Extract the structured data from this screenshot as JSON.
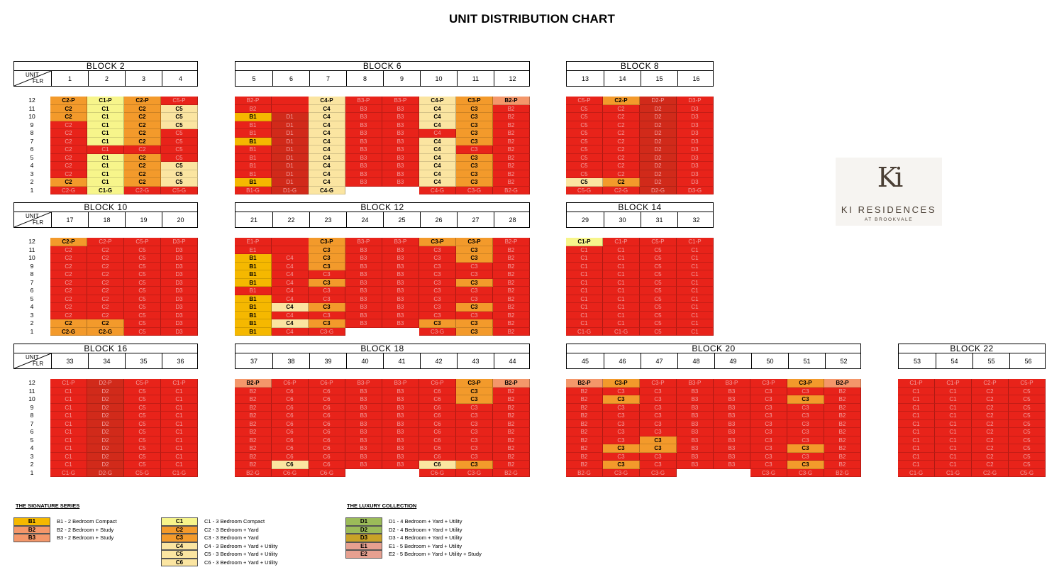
{
  "title": "UNIT DISTRIBUTION CHART",
  "colors": {
    "sold": "#e8231a",
    "B1": "#f5b800",
    "B2": "#f4976a",
    "B3": "#f4976a",
    "C1": "#f7f58b",
    "C2": "#f39a2b",
    "C3": "#f39a2b",
    "C4": "#fbe5a1",
    "C5": "#fbe5a1",
    "C6": "#fbe5a1",
    "D1": "#9bbb59",
    "D2": "#9bbb59",
    "D3": "#c9a227",
    "E1": "#e6a090",
    "E2": "#e6a090",
    "D1sold": "#d12a1a",
    "D2sold": "#d12a1a"
  },
  "corner": {
    "unit": "UNIT",
    "flr": "FLR"
  },
  "floors": [
    "12",
    "11",
    "10",
    "9",
    "8",
    "7",
    "6",
    "5",
    "4",
    "3",
    "2",
    "1"
  ],
  "blocks": [
    {
      "name": "BLOCK  2",
      "units": [
        "1",
        "2",
        "3",
        "4"
      ],
      "cols": [
        [
          "C2-P*",
          "C2*",
          "C2*",
          "C2",
          "C2",
          "C2",
          "C2",
          "C2",
          "C2",
          "C2",
          "C2*",
          "C2-G"
        ],
        [
          "C1-P*",
          "C1*",
          "C1*",
          "C1*",
          "C1*",
          "C1*",
          "C1",
          "C1*",
          "C1*",
          "C1*",
          "C1*",
          "C1-G*"
        ],
        [
          "C2-P*",
          "C2*",
          "C2*",
          "C2*",
          "C2*",
          "C2*",
          "C2",
          "C2*",
          "C2*",
          "C2*",
          "C2*",
          "C2-G"
        ],
        [
          "C5-P",
          "C5*",
          "C5*",
          "C5*",
          "C5",
          "C5",
          "C5",
          "C5",
          "C5*",
          "C5*",
          "C5*",
          "C5-G"
        ]
      ]
    },
    {
      "name": "BLOCK  6",
      "units": [
        "5",
        "6",
        "7",
        "8",
        "9",
        "10",
        "11",
        "12"
      ],
      "cols": [
        [
          "B2-P",
          "B2",
          "B1*",
          "B1",
          "B1",
          "B1*",
          "B1",
          "B1",
          "B1",
          "B1",
          "B1*",
          "B1-G"
        ],
        [
          "-",
          "-",
          "D1",
          "D1",
          "D1",
          "D1",
          "D1",
          "D1",
          "D1",
          "D1",
          "D1",
          "D1-G"
        ],
        [
          "C4-P*",
          "C4*",
          "C4*",
          "C4*",
          "C4*",
          "C4*",
          "C4*",
          "C4*",
          "C4*",
          "C4*",
          "C4*",
          "C4-G*"
        ],
        [
          "B3-P",
          "B3",
          "B3",
          "B3",
          "B3",
          "B3",
          "B3",
          "B3",
          "B3",
          "B3",
          "B3",
          "~"
        ],
        [
          "B3-P",
          "B3",
          "B3",
          "B3",
          "B3",
          "B3",
          "B3",
          "B3",
          "B3",
          "B3",
          "B3",
          "~"
        ],
        [
          "C4-P*",
          "C4*",
          "C4*",
          "C4*",
          "C4",
          "C4*",
          "C4*",
          "C4*",
          "C4*",
          "C4*",
          "C4*",
          "C4-G"
        ],
        [
          "C3-P*",
          "C3*",
          "C3*",
          "C3*",
          "C3*",
          "C3*",
          "C3",
          "C3*",
          "C3*",
          "C3*",
          "C3*",
          "C3-G"
        ],
        [
          "B2-P*",
          "B2",
          "B2",
          "B2",
          "B2",
          "B2",
          "B2",
          "B2",
          "B2",
          "B2",
          "B2",
          "B2-G"
        ]
      ]
    },
    {
      "name": "BLOCK  8",
      "units": [
        "13",
        "14",
        "15",
        "16"
      ],
      "cols": [
        [
          "C5-P",
          "C5",
          "C5",
          "C5",
          "C5",
          "C5",
          "C5",
          "C5",
          "C5",
          "C5",
          "C5*",
          "C5-G"
        ],
        [
          "C2-P*",
          "C2",
          "C2",
          "C2",
          "C2",
          "C2",
          "C2",
          "C2",
          "C2",
          "C2",
          "C2*",
          "C2-G"
        ],
        [
          "D2-P",
          "D2",
          "D2",
          "D2",
          "D2",
          "D2",
          "D2",
          "D2",
          "D2",
          "D2",
          "D2",
          "D2-G"
        ],
        [
          "D3-P",
          "D3",
          "D3",
          "D3",
          "D3",
          "D3",
          "D3",
          "D3",
          "D3",
          "D3",
          "D3",
          "D3-G"
        ]
      ]
    },
    {
      "name": "BLOCK  10",
      "units": [
        "17",
        "18",
        "19",
        "20"
      ],
      "cols": [
        [
          "C2-P*",
          "C2",
          "C2",
          "C2",
          "C2",
          "C2",
          "C2",
          "C2",
          "C2",
          "C2",
          "C2*",
          "C2-G*"
        ],
        [
          "C2-P",
          "C2",
          "C2",
          "C2",
          "C2",
          "C2",
          "C2",
          "C2",
          "C2",
          "C2",
          "C2*",
          "C2-G*"
        ],
        [
          "C5-P",
          "C5",
          "C5",
          "C5",
          "C5",
          "C5",
          "C5",
          "C5",
          "C5",
          "C5",
          "C5",
          "C5"
        ],
        [
          "D3-P",
          "D3",
          "D3",
          "D3",
          "D3",
          "D3",
          "D3",
          "D3",
          "D3",
          "D3",
          "D3",
          "D3"
        ]
      ]
    },
    {
      "name": "BLOCK  12",
      "units": [
        "21",
        "22",
        "23",
        "24",
        "25",
        "26",
        "27",
        "28"
      ],
      "cols": [
        [
          "E1-P",
          "E1",
          "B1*",
          "B1*",
          "B1*",
          "B1*",
          "B1",
          "B1*",
          "B1*",
          "B1*",
          "B1*",
          "B1*"
        ],
        [
          "-",
          "-",
          "C4",
          "C4",
          "C4",
          "C4",
          "C4",
          "C4",
          "C4*",
          "C4",
          "C4*",
          "C4"
        ],
        [
          "C3-P*",
          "C3*",
          "C3*",
          "C3*",
          "C3",
          "C3*",
          "C3",
          "C3",
          "C3*",
          "C3",
          "C3*",
          "C3-G"
        ],
        [
          "B3-P",
          "B3",
          "B3",
          "B3",
          "B3",
          "B3",
          "B3",
          "B3",
          "B3",
          "B3",
          "B3",
          "~"
        ],
        [
          "B3-P",
          "B3",
          "B3",
          "B3",
          "B3",
          "B3",
          "B3",
          "B3",
          "B3",
          "B3",
          "B3",
          "~"
        ],
        [
          "C3-P*",
          "C3",
          "C3",
          "C3",
          "C3",
          "C3",
          "C3",
          "C3",
          "C3",
          "C3",
          "C3*",
          "C3-G"
        ],
        [
          "C3-P*",
          "C3*",
          "C3*",
          "C3",
          "C3",
          "C3*",
          "C3",
          "C3",
          "C3*",
          "C3",
          "C3*",
          "C3*"
        ],
        [
          "B2-P",
          "B2",
          "B2",
          "B2",
          "B2",
          "B2",
          "B2",
          "B2",
          "B2",
          "B2",
          "B2",
          "B2"
        ]
      ]
    },
    {
      "name": "BLOCK  14",
      "units": [
        "29",
        "30",
        "31",
        "32"
      ],
      "cols": [
        [
          "C1-P*",
          "C1",
          "C1",
          "C1",
          "C1",
          "C1",
          "C1",
          "C1",
          "C1",
          "C1",
          "C1",
          "C1-G"
        ],
        [
          "C1-P",
          "C1",
          "C1",
          "C1",
          "C1",
          "C1",
          "C1",
          "C1",
          "C1",
          "C1",
          "C1",
          "C1-G"
        ],
        [
          "C5-P",
          "C5",
          "C5",
          "C5",
          "C5",
          "C5",
          "C5",
          "C5",
          "C5",
          "C5",
          "C5",
          "C5"
        ],
        [
          "C1-P",
          "C1",
          "C1",
          "C1",
          "C1",
          "C1",
          "C1",
          "C1",
          "C1",
          "C1",
          "C1",
          "C1"
        ]
      ]
    },
    {
      "name": "BLOCK  16",
      "units": [
        "33",
        "34",
        "35",
        "36"
      ],
      "cols": [
        [
          "C1-P",
          "C1",
          "C1",
          "C1",
          "C1",
          "C1",
          "C1",
          "C1",
          "C1",
          "C1",
          "C1",
          "C1-G"
        ],
        [
          "D2-P",
          "D2",
          "D2",
          "D2",
          "D2",
          "D2",
          "D2",
          "D2",
          "D2",
          "D2",
          "D2",
          "D2-G"
        ],
        [
          "C5-P",
          "C5",
          "C5",
          "C5",
          "C5",
          "C5",
          "C5",
          "C5",
          "C5",
          "C5",
          "C5",
          "C5-G"
        ],
        [
          "C1-P",
          "C1",
          "C1",
          "C1",
          "C1",
          "C1",
          "C1",
          "C1",
          "C1",
          "C1",
          "C1",
          "C1-G"
        ]
      ]
    },
    {
      "name": "BLOCK  18",
      "units": [
        "37",
        "38",
        "39",
        "40",
        "41",
        "42",
        "43",
        "44"
      ],
      "cols": [
        [
          "B2-P*",
          "B2",
          "B2",
          "B2",
          "B2",
          "B2",
          "B2",
          "B2",
          "B2",
          "B2",
          "B2",
          "B2-G"
        ],
        [
          "C6-P",
          "C6",
          "C6",
          "C6",
          "C6",
          "C6",
          "C6",
          "C6",
          "C6",
          "C6",
          "C6*",
          "C6-G"
        ],
        [
          "C6-P",
          "C6",
          "C6",
          "C6",
          "C6",
          "C6",
          "C6",
          "C6",
          "C6",
          "C6",
          "C6",
          "C6-G"
        ],
        [
          "B3-P",
          "B3",
          "B3",
          "B3",
          "B3",
          "B3",
          "B3",
          "B3",
          "B3",
          "B3",
          "B3",
          "~"
        ],
        [
          "B3-P",
          "B3",
          "B3",
          "B3",
          "B3",
          "B3",
          "B3",
          "B3",
          "B3",
          "B3",
          "B3",
          "~"
        ],
        [
          "C6-P",
          "C6",
          "C6",
          "C6",
          "C6",
          "C6",
          "C6",
          "C6",
          "C6",
          "C6",
          "C6*",
          "C6-G"
        ],
        [
          "C3-P*",
          "C3*",
          "C3*",
          "C3",
          "C3",
          "C3",
          "C3",
          "C3",
          "C3",
          "C3",
          "C3*",
          "C3-G"
        ],
        [
          "B2-P*",
          "B2",
          "B2",
          "B2",
          "B2",
          "B2",
          "B2",
          "B2",
          "B2",
          "B2",
          "B2",
          "B2-G"
        ]
      ]
    },
    {
      "name": "BLOCK  20",
      "units": [
        "45",
        "46",
        "47",
        "48",
        "49",
        "50",
        "51",
        "52"
      ],
      "cols": [
        [
          "B2-P*",
          "B2",
          "B2",
          "B2",
          "B2",
          "B2",
          "B2",
          "B2",
          "B2",
          "B2",
          "B2",
          "B2-G"
        ],
        [
          "C3-P*",
          "C3",
          "C3*",
          "C3",
          "C3",
          "C3",
          "C3",
          "C3",
          "C3*",
          "C3",
          "C3*",
          "C3-G"
        ],
        [
          "C3-P",
          "C3",
          "C3",
          "C3",
          "C3",
          "C3",
          "C3",
          "C3*",
          "C3*",
          "C3",
          "C3",
          "C3-G"
        ],
        [
          "B3-P",
          "B3",
          "B3",
          "B3",
          "B3",
          "B3",
          "B3",
          "B3",
          "B3",
          "B3",
          "B3",
          "~"
        ],
        [
          "B3-P",
          "B3",
          "B3",
          "B3",
          "B3",
          "B3",
          "B3",
          "B3",
          "B3",
          "B3",
          "B3",
          "~"
        ],
        [
          "C3-P",
          "C3",
          "C3",
          "C3",
          "C3",
          "C3",
          "C3",
          "C3",
          "C3",
          "C3",
          "C3",
          "C3-G"
        ],
        [
          "C3-P*",
          "C3",
          "C3*",
          "C3",
          "C3",
          "C3",
          "C3",
          "C3",
          "C3*",
          "C3",
          "C3*",
          "C3-G"
        ],
        [
          "B2-P*",
          "B2",
          "B2",
          "B2",
          "B2",
          "B2",
          "B2",
          "B2",
          "B2",
          "B2",
          "B2",
          "B2-G"
        ]
      ]
    },
    {
      "name": "BLOCK  22",
      "units": [
        "53",
        "54",
        "55",
        "56"
      ],
      "cols": [
        [
          "C1-P",
          "C1",
          "C1",
          "C1",
          "C1",
          "C1",
          "C1",
          "C1",
          "C1",
          "C1",
          "C1",
          "C1-G"
        ],
        [
          "C1-P",
          "C1",
          "C1",
          "C1",
          "C1",
          "C1",
          "C1",
          "C1",
          "C1",
          "C1",
          "C1",
          "C1-G"
        ],
        [
          "C2-P",
          "C2",
          "C2",
          "C2",
          "C2",
          "C2",
          "C2",
          "C2",
          "C2",
          "C2",
          "C2",
          "C2-G"
        ],
        [
          "C5-P",
          "C5",
          "C5",
          "C5",
          "C5",
          "C5",
          "C5",
          "C5",
          "C5",
          "C5",
          "C5",
          "C5-G"
        ]
      ]
    }
  ],
  "legend": {
    "signature_title": "THE SIGNATURE SERIES",
    "luxury_title": "THE LUXURY COLLECTION",
    "signature_a": [
      {
        "code": "B1",
        "text": "B1 - 2 Bedroom Compact"
      },
      {
        "code": "B2",
        "text": "B2 - 2 Bedroom + Study"
      },
      {
        "code": "B3",
        "text": "B3 - 2 Bedroom + Study"
      }
    ],
    "signature_b": [
      {
        "code": "C1",
        "text": "C1 - 3 Bedroom Compact"
      },
      {
        "code": "C2",
        "text": "C2 - 3 Bedroom + Yard"
      },
      {
        "code": "C3",
        "text": "C3 - 3 Bedroom + Yard"
      },
      {
        "code": "C4",
        "text": "C4 - 3 Bedroom + Yard + Utility"
      },
      {
        "code": "C5",
        "text": "C5 - 3 Bedroom + Yard + Utility"
      },
      {
        "code": "C6",
        "text": "C6 - 3 Bedroom + Yard + Utility"
      }
    ],
    "luxury": [
      {
        "code": "D1",
        "text": "D1 - 4 Bedroom + Yard + Utility"
      },
      {
        "code": "D2",
        "text": "D2 - 4 Bedroom + Yard + Utility"
      },
      {
        "code": "D3",
        "text": "D3 - 4 Bedroom + Yard + Utility"
      },
      {
        "code": "E1",
        "text": "E1 - 5 Bedroom + Yard + Utility"
      },
      {
        "code": "E2",
        "text": "E2 - 5 Bedroom + Yard + Utility + Study"
      }
    ]
  },
  "logo": {
    "mark": "Ki",
    "name": "KI RESIDENCES",
    "sub": "AT BROOKVALE"
  }
}
